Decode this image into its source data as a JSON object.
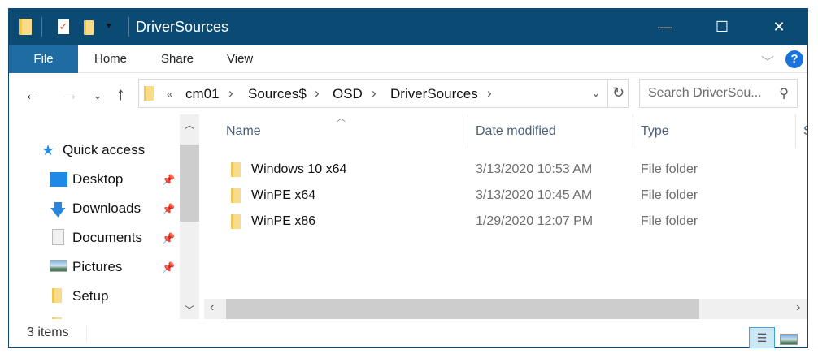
{
  "window": {
    "title": "DriverSources",
    "minimize_label": "—",
    "maximize_label": "☐",
    "close_label": "✕"
  },
  "ribbon": {
    "tabs": [
      {
        "label": "File"
      },
      {
        "label": "Home"
      },
      {
        "label": "Share"
      },
      {
        "label": "View"
      }
    ]
  },
  "address": {
    "overflow": "«",
    "crumbs": [
      "cm01",
      "Sources$",
      "OSD",
      "DriverSources"
    ],
    "separator": "›"
  },
  "search": {
    "placeholder": "Search DriverSou..."
  },
  "nav": {
    "items": [
      {
        "label": "Quick access",
        "icon": "star-icon"
      },
      {
        "label": "Desktop",
        "icon": "desktop-icon",
        "pinned": true
      },
      {
        "label": "Downloads",
        "icon": "download-icon",
        "pinned": true
      },
      {
        "label": "Documents",
        "icon": "documents-icon",
        "pinned": true
      },
      {
        "label": "Pictures",
        "icon": "pictures-icon",
        "pinned": true
      },
      {
        "label": "Setup",
        "icon": "folder-icon",
        "pinned": false
      }
    ]
  },
  "columns": {
    "name": "Name",
    "date": "Date modified",
    "type": "Type",
    "size": "S"
  },
  "files": [
    {
      "name": "Windows 10 x64",
      "date": "3/13/2020 10:53 AM",
      "type": "File folder"
    },
    {
      "name": "WinPE x64",
      "date": "3/13/2020 10:45 AM",
      "type": "File folder"
    },
    {
      "name": "WinPE x86",
      "date": "1/29/2020 12:07 PM",
      "type": "File folder"
    }
  ],
  "status": {
    "items": "3 items"
  },
  "colors": {
    "titlebar": "#0b4a73",
    "file_tab": "#1f6ca3",
    "help": "#1a73d9"
  }
}
